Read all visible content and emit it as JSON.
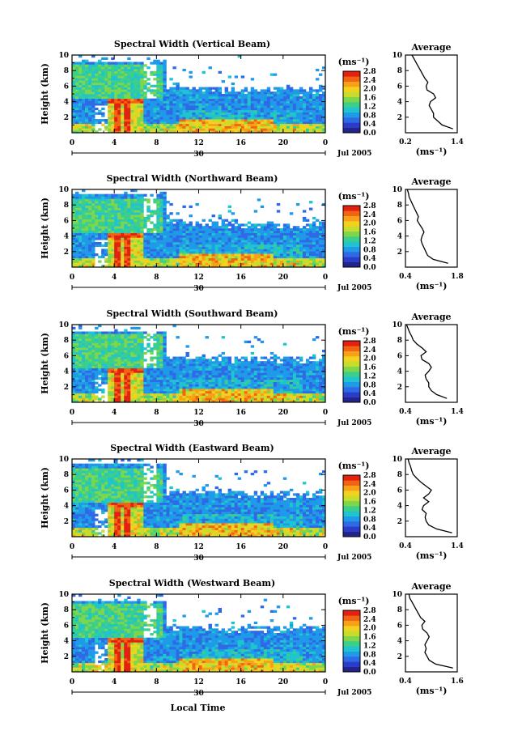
{
  "figure": {
    "x_label": "Local Time",
    "y_label": "Height (km)",
    "date_label": "Jul 2005",
    "day_label": "30",
    "unit_label": "(ms⁻¹)",
    "avg_title": "Average",
    "avg_xlabel": "(ms⁻¹)"
  },
  "colors": {
    "scale": [
      "#23238c",
      "#2b3cc8",
      "#2f6ae6",
      "#1f9ae8",
      "#20c4cf",
      "#3ccf8a",
      "#7ed64a",
      "#c8dc2c",
      "#f2d21e",
      "#f8a018",
      "#f06414",
      "#e42010"
    ]
  },
  "chart_data": [
    {
      "type": "heatmap",
      "title": "Spectral Width (Vertical Beam)",
      "x_ticks": [
        "0",
        "4",
        "8",
        "12",
        "16",
        "20",
        "0"
      ],
      "xlim": [
        0,
        24
      ],
      "y_ticks": [
        "2",
        "4",
        "6",
        "8",
        "10"
      ],
      "ylim": [
        0,
        10
      ],
      "colorbar_ticks": [
        "0.0",
        "0.4",
        "0.8",
        "1.2",
        "1.6",
        "2.0",
        "2.4",
        "2.8"
      ],
      "colorbar_range": [
        0,
        2.8
      ],
      "average_profile": {
        "x_ticks": [
          "0.2",
          "1.4"
        ],
        "xlim": [
          0.2,
          1.4
        ],
        "height": [
          0.5,
          1,
          1.5,
          2,
          2.5,
          3,
          3.5,
          4,
          4.5,
          5,
          5.5,
          6,
          6.5,
          7,
          7.5,
          8,
          8.5,
          9,
          9.5,
          10
        ],
        "value": [
          1.3,
          1.05,
          0.95,
          0.85,
          0.85,
          0.8,
          0.75,
          0.78,
          0.9,
          0.85,
          0.7,
          0.68,
          0.72,
          0.65,
          0.6,
          0.55,
          0.5,
          0.45,
          0.4,
          0.35
        ]
      }
    },
    {
      "type": "heatmap",
      "title": "Spectral Width (Northward Beam)",
      "x_ticks": [
        "0",
        "4",
        "8",
        "12",
        "16",
        "20",
        "0"
      ],
      "xlim": [
        0,
        24
      ],
      "y_ticks": [
        "2",
        "4",
        "6",
        "8",
        "10"
      ],
      "ylim": [
        0,
        10
      ],
      "colorbar_ticks": [
        "0.0",
        "0.4",
        "0.8",
        "1.2",
        "1.6",
        "2.0",
        "2.4",
        "2.8"
      ],
      "colorbar_range": [
        0,
        2.8
      ],
      "average_profile": {
        "x_ticks": [
          "0.4",
          "1.8"
        ],
        "xlim": [
          0.4,
          1.8
        ],
        "height": [
          0.5,
          1,
          1.5,
          2,
          2.5,
          3,
          3.5,
          4,
          4.5,
          5,
          5.5,
          6,
          6.5,
          7,
          7.5,
          8,
          8.5,
          9,
          9.5,
          10
        ],
        "value": [
          1.55,
          1.15,
          1.0,
          0.95,
          0.9,
          0.85,
          0.82,
          0.85,
          0.9,
          0.85,
          0.78,
          0.72,
          0.75,
          0.7,
          0.65,
          0.6,
          0.55,
          0.5,
          0.48,
          0.45
        ]
      }
    },
    {
      "type": "heatmap",
      "title": "Spectral Width (Southward Beam)",
      "x_ticks": [
        "0",
        "4",
        "8",
        "12",
        "16",
        "20",
        "0"
      ],
      "xlim": [
        0,
        24
      ],
      "y_ticks": [
        "2",
        "4",
        "6",
        "8",
        "10"
      ],
      "ylim": [
        0,
        10
      ],
      "colorbar_ticks": [
        "0.0",
        "0.4",
        "0.8",
        "1.2",
        "1.6",
        "2.0",
        "2.4",
        "2.8"
      ],
      "colorbar_range": [
        0,
        2.8
      ],
      "average_profile": {
        "x_ticks": [
          "0.4",
          "1.4"
        ],
        "xlim": [
          0.4,
          1.4
        ],
        "height": [
          0.5,
          1,
          1.5,
          2,
          2.5,
          3,
          3.5,
          4,
          4.5,
          5,
          5.5,
          6,
          6.5,
          7,
          7.5,
          8,
          8.5,
          9,
          9.5,
          10
        ],
        "value": [
          1.2,
          1.0,
          0.9,
          0.85,
          0.85,
          0.8,
          0.78,
          0.85,
          0.9,
          0.85,
          0.72,
          0.7,
          0.8,
          0.72,
          0.62,
          0.55,
          0.52,
          0.48,
          0.45,
          0.42
        ]
      }
    },
    {
      "type": "heatmap",
      "title": "Spectral Width (Eastward Beam)",
      "x_ticks": [
        "0",
        "4",
        "8",
        "12",
        "16",
        "20",
        "0"
      ],
      "xlim": [
        0,
        24
      ],
      "y_ticks": [
        "2",
        "4",
        "6",
        "8",
        "10"
      ],
      "ylim": [
        0,
        10
      ],
      "colorbar_ticks": [
        "0.0",
        "0.4",
        "0.8",
        "1.2",
        "1.6",
        "2.0",
        "2.4",
        "2.8"
      ],
      "colorbar_range": [
        0,
        2.8
      ],
      "average_profile": {
        "x_ticks": [
          "0.4",
          "1.4"
        ],
        "xlim": [
          0.4,
          1.4
        ],
        "height": [
          0.5,
          1,
          1.5,
          2,
          2.5,
          3,
          3.5,
          4,
          4.5,
          5,
          5.5,
          6,
          6.5,
          7,
          7.5,
          8,
          8.5,
          9,
          9.5,
          10
        ],
        "value": [
          1.3,
          1.0,
          0.85,
          0.8,
          0.78,
          0.8,
          0.72,
          0.75,
          0.85,
          0.75,
          0.85,
          0.9,
          0.8,
          0.7,
          0.62,
          0.55,
          0.52,
          0.5,
          0.47,
          0.45
        ]
      }
    },
    {
      "type": "heatmap",
      "title": "Spectral Width (Westward Beam)",
      "x_ticks": [
        "0",
        "4",
        "8",
        "12",
        "16",
        "20",
        "0"
      ],
      "xlim": [
        0,
        24
      ],
      "y_ticks": [
        "2",
        "4",
        "6",
        "8",
        "10"
      ],
      "ylim": [
        0,
        10
      ],
      "colorbar_ticks": [
        "0.0",
        "0.4",
        "0.8",
        "1.2",
        "1.6",
        "2.0",
        "2.4",
        "2.8"
      ],
      "colorbar_range": [
        0,
        2.8
      ],
      "average_profile": {
        "x_ticks": [
          "0.4",
          "1.6"
        ],
        "xlim": [
          0.4,
          1.6
        ],
        "height": [
          0.5,
          1,
          1.5,
          2,
          2.5,
          3,
          3.5,
          4,
          4.5,
          5,
          5.5,
          6,
          6.5,
          7,
          7.5,
          8,
          8.5,
          9,
          9.5,
          10
        ],
        "value": [
          1.5,
          1.1,
          0.95,
          0.9,
          0.85,
          0.88,
          0.85,
          0.9,
          0.95,
          0.9,
          0.8,
          0.78,
          0.85,
          0.75,
          0.7,
          0.65,
          0.6,
          0.55,
          0.5,
          0.48
        ]
      }
    }
  ]
}
